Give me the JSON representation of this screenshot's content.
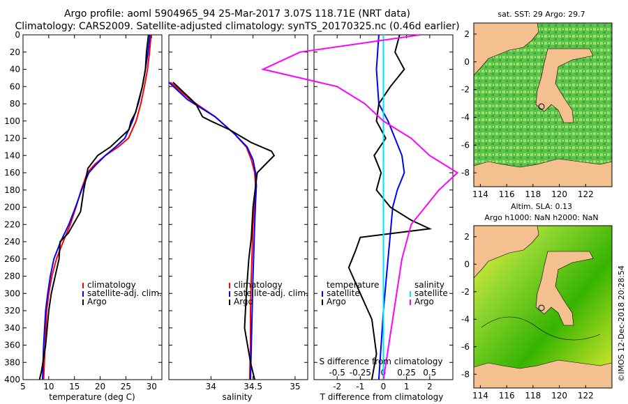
{
  "header": {
    "line1": "Argo profile: aoml 5904965_94 25-Mar-2017 3.07S 118.71E (NRT data)",
    "line2": "Climatology: CARS2009. Satellite-adjusted climatology: synTS_20170325.nc (0.46d earlier)"
  },
  "footer": {
    "watermark": "©IMOS 12-Dec-2018 20:28:54"
  },
  "colors": {
    "climatology": "#ff0000",
    "satellite": "#0000ff",
    "argo": "#000000",
    "sat_salinity": "#00e5ff",
    "argo_salinity_diff": "#ff00ff",
    "land": "#f4c08f",
    "ocean_high": "#22bb00",
    "ocean_low": "#f0f23c"
  },
  "chart_data": [
    {
      "type": "line",
      "name": "temperature",
      "xlabel": "temperature (deg C)",
      "xlim": [
        5,
        32
      ],
      "xticks": [
        5,
        10,
        15,
        20,
        25,
        30
      ],
      "ylim": [
        400,
        0
      ],
      "yticks": [
        0,
        20,
        40,
        60,
        80,
        100,
        120,
        140,
        160,
        180,
        200,
        220,
        240,
        260,
        280,
        300,
        320,
        340,
        360,
        380,
        400
      ],
      "legend": [
        "climatology",
        "satellite-adj. clim.",
        "Argo"
      ],
      "series": [
        {
          "name": "climatology",
          "color": "#ff0000",
          "x": [
            29.9,
            29.6,
            29.2,
            28.6,
            27.9,
            27.0,
            25.5,
            23.5,
            21.0,
            19.0,
            17.5,
            16.3,
            15.3,
            14.2,
            12.8,
            11.5,
            10.6,
            10.0,
            9.6,
            9.3,
            9.0
          ],
          "y": [
            0,
            20,
            40,
            60,
            80,
            100,
            120,
            130,
            140,
            150,
            160,
            180,
            200,
            220,
            240,
            260,
            280,
            300,
            320,
            360,
            400
          ]
        },
        {
          "name": "satellite-adj. clim.",
          "color": "#0000ff",
          "x": [
            29.7,
            29.3,
            28.8,
            28.2,
            27.4,
            26.3,
            24.8,
            23.0,
            21.0,
            19.3,
            17.8,
            16.4,
            15.2,
            13.9,
            12.3,
            11.0,
            10.3,
            9.8,
            9.4,
            9.0,
            8.8
          ],
          "y": [
            0,
            20,
            40,
            60,
            80,
            100,
            120,
            130,
            140,
            150,
            160,
            180,
            200,
            220,
            240,
            260,
            280,
            300,
            320,
            360,
            400
          ]
        },
        {
          "name": "Argo",
          "color": "#000000",
          "x": [
            29.4,
            29.0,
            28.8,
            28.2,
            27.3,
            26.9,
            26.0,
            25.6,
            23.8,
            22.0,
            19.5,
            17.6,
            16.8,
            16.2,
            13.8,
            12.2,
            12.0,
            10.5,
            10.0,
            9.4,
            8.6,
            8.2
          ],
          "y": [
            0,
            20,
            40,
            60,
            80,
            90,
            100,
            110,
            120,
            130,
            140,
            155,
            180,
            205,
            230,
            240,
            260,
            300,
            320,
            360,
            390,
            400
          ]
        }
      ]
    },
    {
      "type": "line",
      "name": "salinity",
      "xlabel": "salinity",
      "xlim": [
        33.5,
        35.15
      ],
      "xticks": [
        34,
        34.5,
        35
      ],
      "ylim": [
        400,
        0
      ],
      "legend": [
        "climatology",
        "satellite-adj. clim.",
        "Argo"
      ],
      "series": [
        {
          "name": "climatology",
          "color": "#ff0000",
          "x": [
            33.52,
            33.75,
            34.05,
            34.28,
            34.42,
            34.48,
            34.52,
            34.53,
            34.52,
            34.5,
            34.49,
            34.48,
            34.47,
            34.47,
            34.46
          ],
          "y": [
            55,
            75,
            95,
            115,
            130,
            145,
            160,
            175,
            195,
            220,
            250,
            280,
            320,
            360,
            400
          ]
        },
        {
          "name": "satellite-adj. clim.",
          "color": "#0000ff",
          "x": [
            33.5,
            33.72,
            34.05,
            34.28,
            34.43,
            34.5,
            34.53,
            34.54,
            34.53,
            34.52,
            34.51,
            34.5,
            34.49,
            34.48,
            34.47
          ],
          "y": [
            55,
            75,
            95,
            115,
            130,
            145,
            160,
            175,
            195,
            220,
            250,
            280,
            320,
            360,
            400
          ]
        },
        {
          "name": "Argo",
          "color": "#000000",
          "x": [
            33.55,
            33.82,
            33.9,
            34.0,
            34.22,
            34.48,
            34.72,
            34.75,
            34.55,
            34.5,
            34.48,
            34.45,
            34.42,
            34.4,
            34.47,
            34.52
          ],
          "y": [
            55,
            80,
            95,
            100,
            110,
            125,
            135,
            140,
            160,
            200,
            235,
            260,
            300,
            340,
            380,
            400
          ]
        }
      ]
    },
    {
      "type": "line",
      "name": "difference",
      "xlabel": "T difference from climatology",
      "x2label": "S difference from climatology",
      "xlim": [
        -3,
        3
      ],
      "xticks": [
        -2,
        -1,
        0,
        1,
        2
      ],
      "x2ticks": [
        -0.5,
        -0.25,
        0,
        0.25,
        0.5
      ],
      "x2ticklabels": [
        "-0.5",
        "-0.25",
        "0",
        "0.25",
        "0.5"
      ],
      "ylim": [
        400,
        0
      ],
      "legend_temperature": {
        "title": "temperature",
        "items": [
          "satellite",
          "Argo"
        ]
      },
      "legend_salinity": {
        "title": "salinity",
        "items": [
          "satellite",
          "Argo"
        ]
      },
      "series": [
        {
          "name": "T satellite",
          "color": "#0000ff",
          "x": [
            -0.2,
            -0.3,
            -0.2,
            0.2,
            0.5,
            0.8,
            0.9,
            0.6,
            0.4,
            0.3,
            0.2,
            0.1,
            0.0,
            -0.1,
            -0.2
          ],
          "y": [
            0,
            40,
            80,
            100,
            120,
            140,
            160,
            180,
            200,
            230,
            260,
            290,
            320,
            360,
            400
          ]
        },
        {
          "name": "T Argo",
          "color": "#000000",
          "x": [
            0.7,
            0.5,
            0.9,
            0.3,
            -0.2,
            -0.3,
            0.1,
            -0.4,
            -0.1,
            -0.3,
            0.3,
            1.2,
            2.0,
            -1.0,
            -1.2,
            -1.5,
            -1.0,
            -0.5,
            -0.3,
            -0.5
          ],
          "y": [
            0,
            20,
            40,
            60,
            80,
            100,
            120,
            140,
            160,
            180,
            200,
            215,
            225,
            235,
            250,
            270,
            300,
            330,
            370,
            400
          ]
        },
        {
          "name": "S satellite",
          "color": "#00e5ff",
          "x": [
            0.0,
            0.0,
            0.0,
            0.0,
            0.0,
            0.0,
            0.0,
            0.0,
            0.0
          ],
          "y": [
            0,
            50,
            100,
            150,
            200,
            250,
            300,
            350,
            400
          ]
        },
        {
          "name": "S Argo",
          "color": "#ff00ff",
          "x": [
            0.4,
            -0.9,
            -1.3,
            -0.5,
            -0.2,
            0.0,
            0.3,
            0.5,
            0.8,
            0.6,
            0.3,
            0.2,
            0.1,
            0.0
          ],
          "y": [
            0,
            20,
            40,
            60,
            80,
            100,
            120,
            140,
            160,
            180,
            220,
            260,
            330,
            400
          ]
        }
      ]
    },
    {
      "type": "heatmap",
      "name": "sst_map",
      "title": "sat. SST: 29 Argo: 29.7",
      "xticks": [
        114,
        116,
        118,
        120,
        122
      ],
      "xlim": [
        113.5,
        124
      ],
      "yticks": [
        2,
        0,
        -2,
        -4,
        -6,
        -8
      ],
      "ylim": [
        2.8,
        -9
      ]
    },
    {
      "type": "heatmap",
      "name": "sla_map",
      "title": "Altim. SLA: 0.13",
      "subtitle": "Argo h1000: NaN h2000: NaN",
      "xticks": [
        114,
        116,
        118,
        120,
        122
      ],
      "xlim": [
        113.5,
        124
      ],
      "yticks": [
        2,
        0,
        -2,
        -4,
        -6,
        -8
      ],
      "ylim": [
        2.8,
        -9
      ]
    }
  ]
}
